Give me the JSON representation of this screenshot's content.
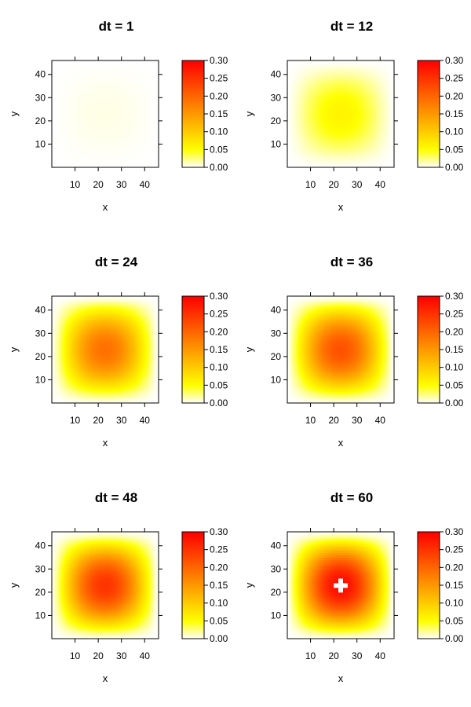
{
  "chart_data": [
    {
      "type": "heatmap",
      "title": "dt = 1",
      "xlabel": "x",
      "ylabel": "y",
      "peak": 0.005,
      "xlim": [
        0,
        46
      ],
      "ylim": [
        0,
        46
      ],
      "xticks": [
        10,
        20,
        30,
        40
      ],
      "yticks": [
        10,
        20,
        30,
        40
      ],
      "colorbar": {
        "min": 0,
        "max": 0.3,
        "ticks": [
          "0.00",
          "0.05",
          "0.10",
          "0.15",
          "0.20",
          "0.25",
          "0.30"
        ],
        "colors": [
          "#ffffff",
          "#ffff00",
          "#ff0000"
        ]
      }
    },
    {
      "type": "heatmap",
      "title": "dt = 12",
      "xlabel": "x",
      "ylabel": "y",
      "peak": 0.06,
      "xlim": [
        0,
        46
      ],
      "ylim": [
        0,
        46
      ],
      "xticks": [
        10,
        20,
        30,
        40
      ],
      "yticks": [
        10,
        20,
        30,
        40
      ],
      "colorbar": {
        "min": 0,
        "max": 0.3,
        "ticks": [
          "0.00",
          "0.05",
          "0.10",
          "0.15",
          "0.20",
          "0.25",
          "0.30"
        ],
        "colors": [
          "#ffffff",
          "#ffff00",
          "#ff0000"
        ]
      }
    },
    {
      "type": "heatmap",
      "title": "dt = 24",
      "xlabel": "x",
      "ylabel": "y",
      "peak": 0.19,
      "xlim": [
        0,
        46
      ],
      "ylim": [
        0,
        46
      ],
      "xticks": [
        10,
        20,
        30,
        40
      ],
      "yticks": [
        10,
        20,
        30,
        40
      ],
      "colorbar": {
        "min": 0,
        "max": 0.3,
        "ticks": [
          "0.00",
          "0.05",
          "0.10",
          "0.15",
          "0.20",
          "0.25",
          "0.30"
        ],
        "colors": [
          "#ffffff",
          "#ffff00",
          "#ff0000"
        ]
      }
    },
    {
      "type": "heatmap",
      "title": "dt = 36",
      "xlabel": "x",
      "ylabel": "y",
      "peak": 0.22,
      "xlim": [
        0,
        46
      ],
      "ylim": [
        0,
        46
      ],
      "xticks": [
        10,
        20,
        30,
        40
      ],
      "yticks": [
        10,
        20,
        30,
        40
      ],
      "colorbar": {
        "min": 0,
        "max": 0.3,
        "ticks": [
          "0.00",
          "0.05",
          "0.10",
          "0.15",
          "0.20",
          "0.25",
          "0.30"
        ],
        "colors": [
          "#ffffff",
          "#ffff00",
          "#ff0000"
        ]
      }
    },
    {
      "type": "heatmap",
      "title": "dt = 48",
      "xlabel": "x",
      "ylabel": "y",
      "peak": 0.25,
      "xlim": [
        0,
        46
      ],
      "ylim": [
        0,
        46
      ],
      "xticks": [
        10,
        20,
        30,
        40
      ],
      "yticks": [
        10,
        20,
        30,
        40
      ],
      "colorbar": {
        "min": 0,
        "max": 0.3,
        "ticks": [
          "0.00",
          "0.05",
          "0.10",
          "0.15",
          "0.20",
          "0.25",
          "0.30"
        ],
        "colors": [
          "#ffffff",
          "#ffff00",
          "#ff0000"
        ]
      }
    },
    {
      "type": "heatmap",
      "title": "dt = 60",
      "xlabel": "x",
      "ylabel": "y",
      "peak": 0.29,
      "xlim": [
        0,
        46
      ],
      "ylim": [
        0,
        46
      ],
      "xticks": [
        10,
        20,
        30,
        40
      ],
      "yticks": [
        10,
        20,
        30,
        40
      ],
      "colorbar": {
        "min": 0,
        "max": 0.3,
        "ticks": [
          "0.00",
          "0.05",
          "0.10",
          "0.15",
          "0.20",
          "0.25",
          "0.30"
        ],
        "colors": [
          "#ffffff",
          "#ffff00",
          "#ff0000"
        ]
      },
      "note_center_blank": true
    }
  ]
}
